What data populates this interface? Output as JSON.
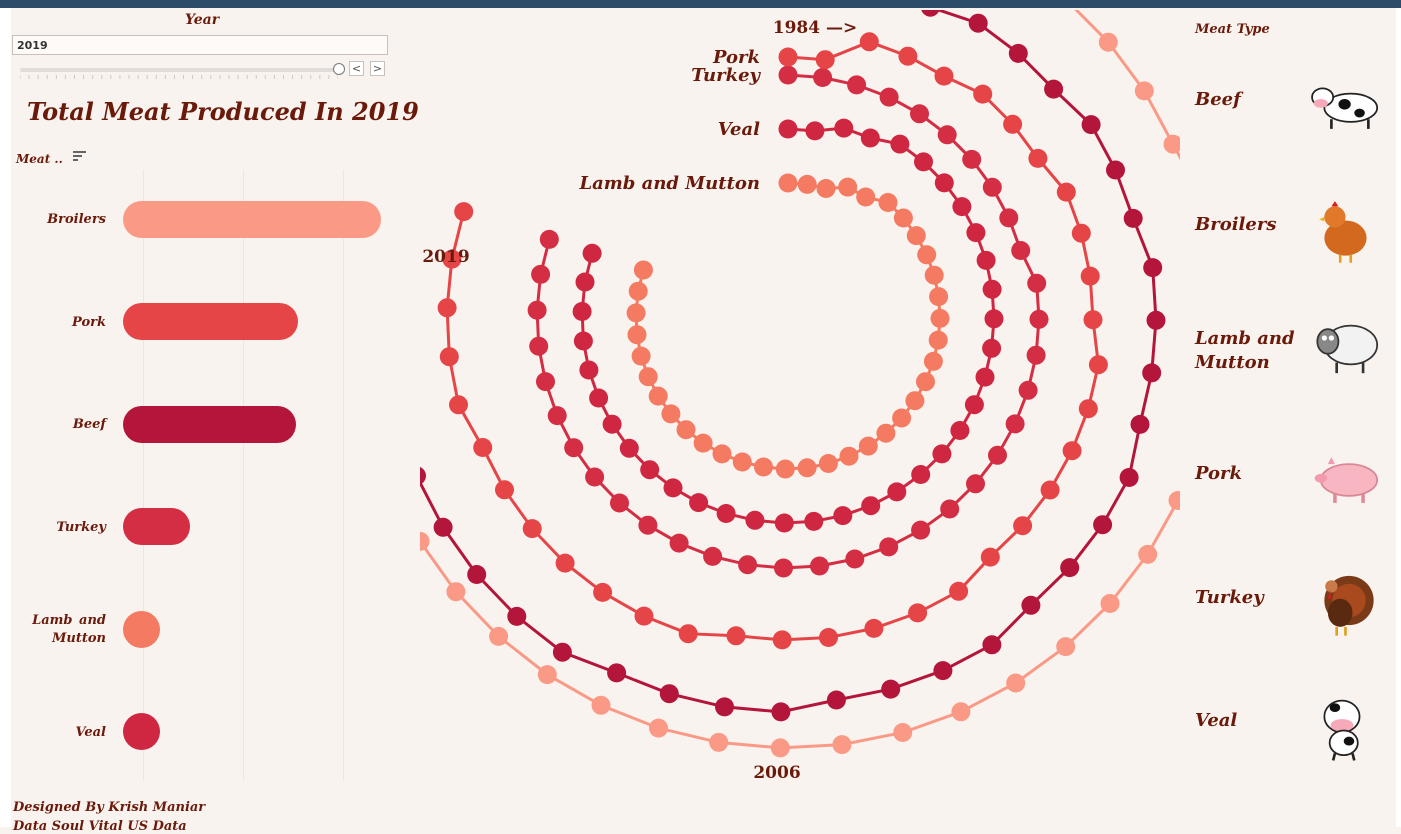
{
  "filter": {
    "year_label": "Year",
    "year_value": "2019",
    "prev_button": "<",
    "next_button": ">"
  },
  "bar_panel": {
    "title": "Total Meat Produced In 2019",
    "sort_label": "Meat .."
  },
  "radial_labels": {
    "start": "1984 —>",
    "end": "2019",
    "middle": "2006"
  },
  "legend": {
    "title": "Meat Type",
    "items": [
      {
        "label": "Beef",
        "icon": "cow-icon"
      },
      {
        "label": "Broilers",
        "icon": "chicken-icon"
      },
      {
        "label": "Lamb and Mutton",
        "icon": "sheep-icon"
      },
      {
        "label": "Pork",
        "icon": "pig-icon"
      },
      {
        "label": "Turkey",
        "icon": "turkey-icon"
      },
      {
        "label": "Veal",
        "icon": "calf-icon"
      }
    ]
  },
  "credits": {
    "line1": "Designed By Krish Maniar",
    "line2": "Data Soul Vital US Data"
  },
  "colors": {
    "Beef": "#b3163a",
    "Pork": "#e64547",
    "Broilers": "#fa9a86",
    "Turkey": "#d42e44",
    "Veal": "#cf2741",
    "Lamb and Mutton": "#f57a62"
  },
  "chart_data": [
    {
      "type": "bar",
      "title": "Total Meat Produced In 2019",
      "categories": [
        "Broilers",
        "Pork",
        "Beef",
        "Turkey",
        "Lamb and Mutton",
        "Veal"
      ],
      "values": [
        100,
        68,
        67,
        26,
        5,
        3
      ],
      "xlim": [
        0,
        100
      ],
      "sort": "descending"
    },
    {
      "type": "line",
      "subtype": "radial",
      "x_start": 1984,
      "x_end": 2019,
      "x_mid_label": 2006,
      "series": [
        {
          "name": "Beef",
          "values": [
            36,
            36,
            37,
            37,
            38,
            38,
            38,
            39,
            39,
            39,
            40,
            40,
            40,
            40,
            41,
            41,
            41,
            41,
            42,
            42,
            42,
            42,
            43,
            43,
            43,
            43,
            44,
            44,
            44,
            44,
            44,
            45,
            45,
            45,
            45,
            45
          ]
        },
        {
          "name": "Pork",
          "values": [
            28,
            28,
            31,
            31,
            31,
            32,
            32,
            32,
            33,
            33,
            33,
            33,
            34,
            34,
            34,
            34,
            34,
            34,
            35,
            35,
            35,
            35,
            35,
            35,
            36,
            36,
            36,
            36,
            36,
            36,
            36,
            37,
            37,
            37,
            37,
            37
          ]
        },
        {
          "name": "Broilers",
          "values": [
            48,
            48,
            46,
            46,
            46,
            46,
            46,
            46,
            46,
            47,
            47,
            47,
            47,
            47,
            47,
            47,
            47,
            47,
            47,
            47,
            47,
            47,
            47,
            47,
            47,
            47,
            47,
            47,
            47,
            47,
            47,
            47,
            47,
            47,
            47,
            47
          ]
        },
        {
          "name": "Turkey",
          "values": [
            26,
            26,
            26,
            26,
            26,
            26,
            26,
            26,
            26,
            26,
            27,
            27,
            27,
            27,
            27,
            27,
            27,
            27,
            27,
            27,
            27,
            27,
            27,
            27,
            27,
            27,
            27,
            27,
            27,
            27,
            27,
            27,
            27,
            27,
            27,
            27
          ]
        },
        {
          "name": "Veal",
          "values": [
            20,
            20,
            21,
            21,
            22,
            22,
            22,
            22,
            22,
            22,
            22,
            22,
            22,
            22,
            22,
            22,
            22,
            22,
            22,
            22,
            22,
            22,
            22,
            22,
            22,
            22,
            22,
            22,
            22,
            22,
            22,
            22,
            22,
            22,
            22,
            22
          ]
        },
        {
          "name": "Lamb and Mutton",
          "values": [
            14,
            14,
            14,
            15,
            15,
            16,
            16,
            16,
            16,
            16,
            16,
            16,
            16,
            16,
            16,
            16,
            16,
            16,
            16,
            16,
            16,
            16,
            16,
            16,
            16,
            16,
            16,
            16,
            16,
            16,
            16,
            16,
            16,
            16,
            16,
            16
          ]
        }
      ]
    }
  ]
}
